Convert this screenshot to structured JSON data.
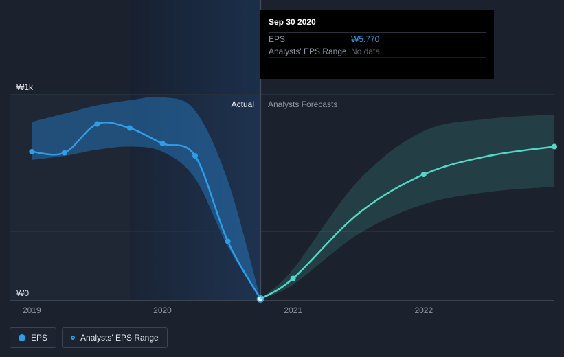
{
  "colors": {
    "background": "#1b222d",
    "eps_line": "#2f9ee9",
    "forecast_line": "#53d8c5",
    "grid": "#262f3c",
    "axis": "#3a4450",
    "divider": "#48525f",
    "text_muted": "#8d97a3",
    "text_bright": "#e2e6ec",
    "tooltip_bg": "#000000",
    "value_blue": "#2d9fe8"
  },
  "tooltip": {
    "title": "Sep 30 2020",
    "rows": [
      {
        "label": "EPS",
        "value": "₩5.770"
      },
      {
        "label": "Analysts' EPS Range",
        "value": "No data"
      }
    ]
  },
  "zones": {
    "actual_label": "Actual",
    "forecast_label": "Analysts Forecasts"
  },
  "legend": {
    "items": [
      {
        "label": "EPS"
      },
      {
        "label": "Analysts' EPS Range"
      }
    ]
  },
  "chart_data": {
    "type": "line",
    "title": "EPS history and analysts forecast (KRW)",
    "xlim": [
      2018.83,
      2023.0
    ],
    "ylim": [
      0,
      1000
    ],
    "divider_x": 2020.75,
    "highlight_x": [
      2019.75,
      2020.75
    ],
    "gridline_values": [
      0,
      333.33,
      666.67,
      1000
    ],
    "x_ticks": [
      {
        "value": 2019,
        "label": "2019"
      },
      {
        "value": 2020,
        "label": "2020"
      },
      {
        "value": 2021,
        "label": "2021"
      },
      {
        "value": 2022,
        "label": "2022"
      }
    ],
    "y_ticks": [
      {
        "value": 1000,
        "label": "₩1k"
      },
      {
        "value": 0,
        "label": "₩0"
      }
    ],
    "series": [
      {
        "id": "eps-line",
        "name": "EPS (actual)",
        "color": "#2f9ee9",
        "x": [
          2019.0,
          2019.25,
          2019.5,
          2019.75,
          2020.0,
          2020.25,
          2020.5,
          2020.75
        ],
        "values": [
          720,
          715,
          855,
          835,
          760,
          700,
          285,
          5.77
        ],
        "marker_x": [
          2019.0,
          2019.25,
          2019.5,
          2019.75,
          2020.0,
          2020.25,
          2020.5
        ],
        "highlight_x": 2020.75
      },
      {
        "id": "forecast-line",
        "name": "EPS (analysts forecast)",
        "color": "#53d8c5",
        "x": [
          2020.75,
          2021.0,
          2021.5,
          2022.0,
          2022.5,
          2023.0
        ],
        "values": [
          5.77,
          105,
          420,
          610,
          700,
          745
        ],
        "marker_x": [
          2021.0,
          2022.0,
          2023.0
        ]
      }
    ],
    "bands": [
      {
        "id": "actual-range-band",
        "name": "Analysts' EPS Range (actual period)",
        "color": "rgba(38,120,190,0.50)",
        "x": [
          2019.0,
          2019.25,
          2019.5,
          2019.75,
          2020.0,
          2020.25,
          2020.5,
          2020.75
        ],
        "upper": [
          865,
          905,
          945,
          970,
          985,
          920,
          580,
          6
        ],
        "lower": [
          680,
          700,
          730,
          745,
          720,
          590,
          260,
          6
        ]
      },
      {
        "id": "forecast-range-band",
        "name": "Analysts' EPS forecast range",
        "color": "rgba(83,216,197,0.16)",
        "x": [
          2020.75,
          2021.0,
          2021.5,
          2022.0,
          2022.5,
          2023.0
        ],
        "upper": [
          6,
          150,
          580,
          820,
          880,
          900
        ],
        "lower": [
          6,
          75,
          320,
          465,
          525,
          550
        ]
      }
    ]
  }
}
